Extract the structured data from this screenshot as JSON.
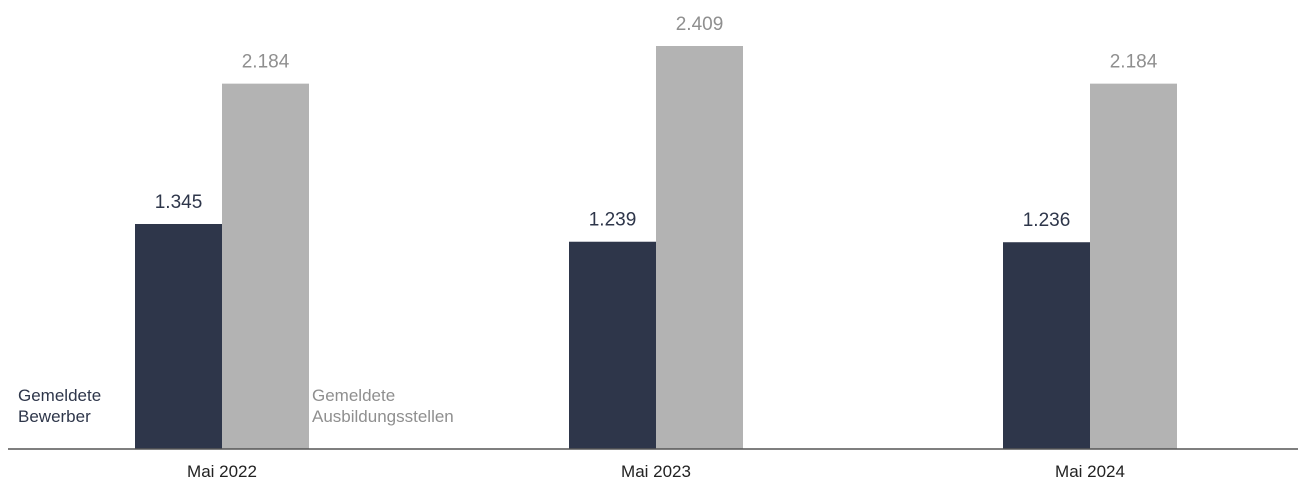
{
  "chart_data": {
    "type": "bar",
    "categories": [
      "Mai 2022",
      "Mai 2023",
      "Mai 2024"
    ],
    "series": [
      {
        "name": "Gemeldete Bewerber",
        "label_lines": [
          "Gemeldete",
          "Bewerber"
        ],
        "values": [
          1345,
          1239,
          1236
        ],
        "value_labels": [
          "1.345",
          "1.239",
          "1.236"
        ],
        "color": "#2e364a",
        "label_color": "#2e364a"
      },
      {
        "name": "Gemeldete Ausbildungsstellen",
        "label_lines": [
          "Gemeldete",
          "Ausbildungsstellen"
        ],
        "values": [
          2184,
          2409,
          2184
        ],
        "value_labels": [
          "2.184",
          "2.409",
          "2.184"
        ],
        "color": "#b3b3b3",
        "label_color": "#8f8f8f"
      }
    ],
    "ylim": [
      0,
      2409
    ],
    "grid": false,
    "axis_color": "#555555"
  }
}
